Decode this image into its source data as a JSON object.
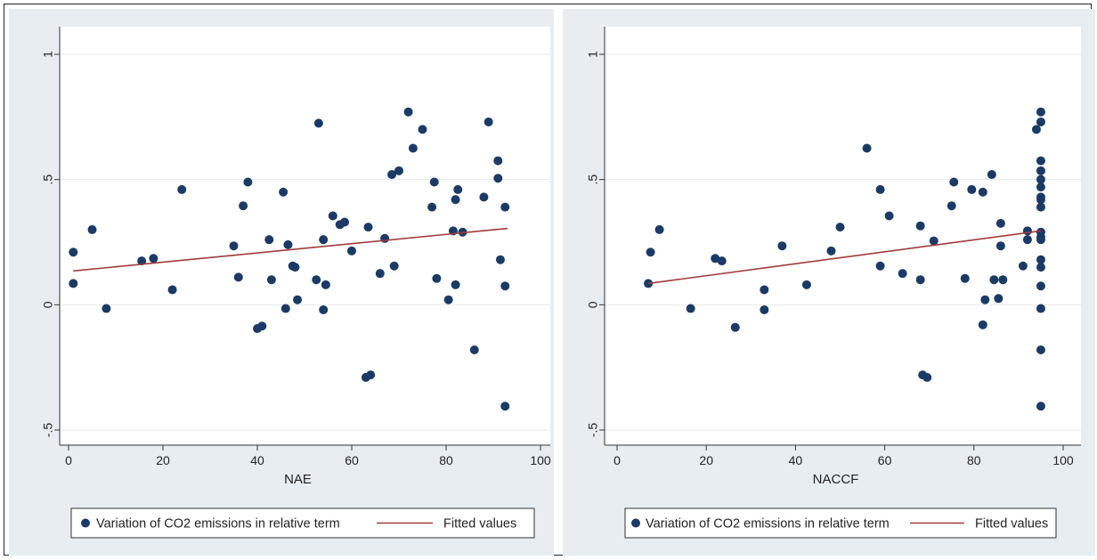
{
  "chart_data": [
    {
      "type": "scatter",
      "xlabel": "NAE",
      "ylabel": "",
      "xlim": [
        0,
        100
      ],
      "ylim": [
        -0.55,
        1.0
      ],
      "xticks": [
        0,
        20,
        40,
        60,
        80,
        100
      ],
      "yticks": [
        -0.5,
        0,
        0.5,
        1
      ],
      "ytick_labels": [
        "-.5",
        "0",
        ".5",
        "1"
      ],
      "xtick_labels": [
        "0",
        "20",
        "40",
        "60",
        "80",
        "100"
      ],
      "grid": true,
      "legend_position": "bottom",
      "series": [
        {
          "name": "Variation of CO2 emissions in relative term",
          "color": "#1b3a66",
          "points": [
            [
              1,
              0.21
            ],
            [
              1,
              0.085
            ],
            [
              5,
              0.3
            ],
            [
              8,
              -0.015
            ],
            [
              15.5,
              0.175
            ],
            [
              18,
              0.185
            ],
            [
              22,
              0.06
            ],
            [
              24,
              0.46
            ],
            [
              35,
              0.235
            ],
            [
              36,
              0.11
            ],
            [
              37,
              0.395
            ],
            [
              38,
              0.49
            ],
            [
              40,
              -0.095
            ],
            [
              41,
              -0.085
            ],
            [
              42.5,
              0.26
            ],
            [
              43,
              0.1
            ],
            [
              45.5,
              0.45
            ],
            [
              46,
              -0.015
            ],
            [
              46.5,
              0.24
            ],
            [
              47.5,
              0.155
            ],
            [
              48,
              0.15
            ],
            [
              48.5,
              0.02
            ],
            [
              53,
              0.725
            ],
            [
              52.5,
              0.1
            ],
            [
              54,
              0.26
            ],
            [
              54,
              -0.02
            ],
            [
              54.5,
              0.08
            ],
            [
              56,
              0.355
            ],
            [
              57.5,
              0.32
            ],
            [
              58.5,
              0.33
            ],
            [
              60,
              0.215
            ],
            [
              63,
              -0.29
            ],
            [
              64,
              -0.28
            ],
            [
              63.5,
              0.31
            ],
            [
              66,
              0.125
            ],
            [
              67,
              0.265
            ],
            [
              68.5,
              0.52
            ],
            [
              69,
              0.155
            ],
            [
              70,
              0.535
            ],
            [
              72,
              0.77
            ],
            [
              73,
              0.625
            ],
            [
              75,
              0.7
            ],
            [
              77,
              0.39
            ],
            [
              77.5,
              0.49
            ],
            [
              78,
              0.105
            ],
            [
              80.5,
              0.02
            ],
            [
              81.5,
              0.295
            ],
            [
              82,
              0.42
            ],
            [
              82,
              0.08
            ],
            [
              82.5,
              0.46
            ],
            [
              83.5,
              0.29
            ],
            [
              86,
              -0.18
            ],
            [
              88,
              0.43
            ],
            [
              89,
              0.73
            ],
            [
              91,
              0.575
            ],
            [
              91,
              0.505
            ],
            [
              91.5,
              0.18
            ],
            [
              92.5,
              -0.405
            ],
            [
              92.5,
              0.075
            ],
            [
              92.5,
              0.39
            ]
          ]
        },
        {
          "name": "Fitted values",
          "color": "#a13a3a",
          "line": [
            [
              1,
              0.135
            ],
            [
              93,
              0.305
            ]
          ]
        }
      ]
    },
    {
      "type": "scatter",
      "xlabel": "NACCF",
      "ylabel": "",
      "xlim": [
        0,
        100
      ],
      "ylim": [
        -0.55,
        1.0
      ],
      "xticks": [
        0,
        20,
        40,
        60,
        80,
        100
      ],
      "yticks": [
        -0.5,
        0,
        0.5,
        1
      ],
      "ytick_labels": [
        "-.5",
        "0",
        ".5",
        "1"
      ],
      "xtick_labels": [
        "0",
        "20",
        "40",
        "60",
        "80",
        "100"
      ],
      "grid": true,
      "legend_position": "bottom",
      "series": [
        {
          "name": "Variation of CO2 emissions in relative term",
          "color": "#1b3a66",
          "points": [
            [
              7,
              0.085
            ],
            [
              7.5,
              0.21
            ],
            [
              9.5,
              0.3
            ],
            [
              16.5,
              -0.015
            ],
            [
              22,
              0.185
            ],
            [
              23.5,
              0.175
            ],
            [
              26.5,
              -0.09
            ],
            [
              33,
              0.06
            ],
            [
              33,
              -0.02
            ],
            [
              37,
              0.235
            ],
            [
              42.5,
              0.08
            ],
            [
              48,
              0.215
            ],
            [
              50,
              0.31
            ],
            [
              56,
              0.625
            ],
            [
              59,
              0.46
            ],
            [
              59,
              0.155
            ],
            [
              61,
              0.355
            ],
            [
              64,
              0.125
            ],
            [
              68,
              0.315
            ],
            [
              68,
              0.1
            ],
            [
              68.5,
              -0.28
            ],
            [
              69.5,
              -0.29
            ],
            [
              71,
              0.255
            ],
            [
              75,
              0.395
            ],
            [
              75.5,
              0.49
            ],
            [
              78,
              0.105
            ],
            [
              79.5,
              0.46
            ],
            [
              82,
              0.45
            ],
            [
              82,
              -0.08
            ],
            [
              82.5,
              0.02
            ],
            [
              84,
              0.52
            ],
            [
              84.5,
              0.1
            ],
            [
              85.5,
              0.025
            ],
            [
              86,
              0.235
            ],
            [
              86,
              0.325
            ],
            [
              86.5,
              0.1
            ],
            [
              91,
              0.155
            ],
            [
              92,
              0.26
            ],
            [
              92,
              0.295
            ],
            [
              94,
              0.7
            ],
            [
              95,
              0.77
            ],
            [
              95,
              0.73
            ],
            [
              95,
              0.575
            ],
            [
              95,
              0.535
            ],
            [
              95,
              0.5
            ],
            [
              95,
              0.47
            ],
            [
              95,
              0.43
            ],
            [
              95,
              0.42
            ],
            [
              95,
              0.39
            ],
            [
              95,
              0.29
            ],
            [
              95,
              0.27
            ],
            [
              95,
              0.26
            ],
            [
              95,
              0.18
            ],
            [
              95,
              0.15
            ],
            [
              95,
              0.075
            ],
            [
              95,
              -0.015
            ],
            [
              95,
              -0.18
            ],
            [
              95,
              -0.405
            ]
          ]
        },
        {
          "name": "Fitted values",
          "color": "#a13a3a",
          "line": [
            [
              7,
              0.085
            ],
            [
              95,
              0.295
            ]
          ]
        }
      ]
    }
  ]
}
